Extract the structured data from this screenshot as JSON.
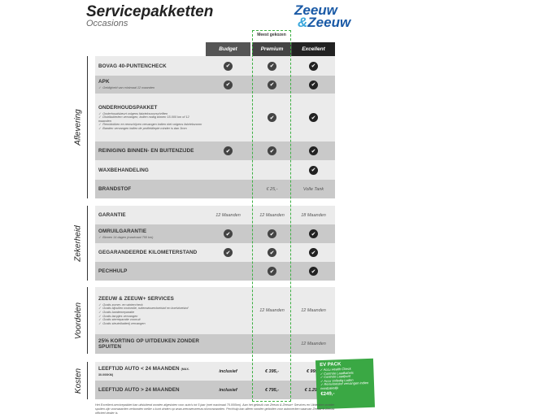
{
  "header": {
    "title": "Servicepakketten",
    "subtitle": "Occasions",
    "logo_line1": "Zeeuw",
    "logo_line2": "Zeeuw",
    "logo_amp": "&"
  },
  "columns": {
    "budget": "Budget",
    "premium": "Premium",
    "excellent": "Excellent",
    "most_chosen": "Meest gekozen"
  },
  "sections": {
    "aflevering": "Aflevering",
    "zekerheid": "Zekerheid",
    "voordelen": "Voordelen",
    "kosten": "Kosten"
  },
  "check_icon": "✔",
  "rows": [
    {
      "label": "BOVAG 40-PUNTENCHECK",
      "notes": [],
      "budget": "check",
      "premium": "check",
      "excellent": "check"
    },
    {
      "label": "APK",
      "notes": [
        "Geldigheid van minimaal 12 maanden"
      ],
      "budget": "check",
      "premium": "check",
      "excellent": "check"
    },
    {
      "label": "ONDERHOUDSPAKKET",
      "notes": [
        "Onderhoudsbeurt volgens fabrieksvoorschriften",
        "Distributieriem vervangen, indien nodig binnen 15.000 km of 12 maanden",
        "Remblokken en remschijven vervangen indien niet volgens fabrieksnorm",
        "Banden vervangen indien de profieldiepte minder is dan 3mm"
      ],
      "budget": "",
      "premium": "check",
      "excellent": "check"
    },
    {
      "label": "REINIGING BINNEN- EN BUITENZIJDE",
      "notes": [],
      "budget": "check",
      "premium": "check",
      "excellent": "check"
    },
    {
      "label": "WAXBEHANDELING",
      "notes": [],
      "budget": "",
      "premium": "",
      "excellent": "check"
    },
    {
      "label": "BRANDSTOF",
      "notes": [],
      "budget": "",
      "premium": "€ 25,-",
      "excellent": "Volle Tank"
    },
    {
      "label": "GARANTIE",
      "notes": [],
      "budget": "12 Maanden",
      "premium": "12 Maanden",
      "excellent": "18 Maanden"
    },
    {
      "label": "OMRUILGARANTIE",
      "notes": [
        "Binnen 14 dagen (maximaal 750 km)"
      ],
      "budget": "check",
      "premium": "check",
      "excellent": "check"
    },
    {
      "label": "GEGARANDEERDE KILOMETERSTAND",
      "notes": [],
      "budget": "check",
      "premium": "check",
      "excellent": "check"
    },
    {
      "label": "PECHHULP",
      "notes": [],
      "budget": "",
      "premium": "check",
      "excellent": "check"
    },
    {
      "label": "ZEEUW & ZEEUW+ SERVICES",
      "notes": [
        "Gratis zomer- en wintercheck",
        "Gratis bijvullen motorolie, ruitenwisservloeistof en koelvloeistof",
        "Gratis bandenreparatie",
        "Gratis lampjes vervangen",
        "Gratis sterreparatie voorruit",
        "Gratis sleutelbatterij vervangen"
      ],
      "budget": "",
      "premium": "12 Maanden",
      "excellent": "12 Maanden"
    },
    {
      "label": "25% KORTING OP UITDEUKEN ZONDER SPUITEN",
      "notes": [],
      "budget": "",
      "premium": "",
      "excellent": "12 Maanden"
    },
    {
      "label": "LEEFTIJD AUTO < 24 MAANDEN",
      "sublabel": "(MAX. 30.000KM)",
      "notes": [],
      "budget": "inclusief",
      "premium": "€ 395,-",
      "excellent": "€ 995,-"
    },
    {
      "label": "LEEFTIJD AUTO > 24 MAANDEN",
      "notes": [],
      "budget": "inclusief",
      "premium": "€ 795,-",
      "excellent": "€ 1.295,-"
    }
  ],
  "ev_pack": {
    "title": "EV PACK",
    "items": [
      "Accu Health Check",
      "Controle Laadkabels",
      "Controle Laadpunt",
      "Accu Volledig Laden",
      "Remvloeistof vervangen indien noodzakelijk"
    ],
    "price": "€249,-",
    "color": "#3aa844"
  },
  "footnote": "Het Excellent-servicepakket kan uitsluitend worden afgesloten voor auto's tot 5 jaar (met maximaal 75.000km). Aan het gebruik van Zeeuw & Zeeuw+ Services en Uitdeuken zonder spuiten zijn voorwaarden verbonden welke u kunt vinden op www.zeeuwenzeeuw.nl/voorwaarden. Pechhulp kan alleen worden geboden voor automerken waarvan Zeeuw & Zeeuw officieel dealer is."
}
